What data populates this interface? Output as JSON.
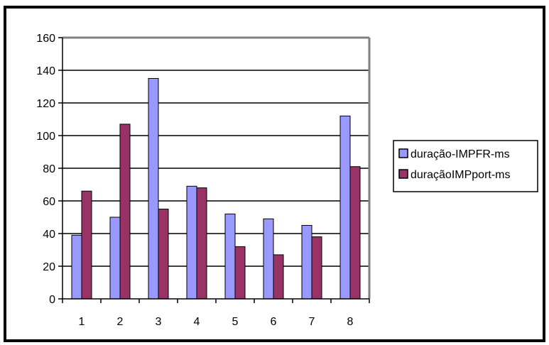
{
  "chart_data": {
    "type": "bar",
    "categories": [
      "1",
      "2",
      "3",
      "4",
      "5",
      "6",
      "7",
      "8"
    ],
    "series": [
      {
        "name": "duração-IMPFR-ms",
        "color": "#9999ff",
        "values": [
          39,
          50,
          135,
          69,
          52,
          49,
          45,
          112
        ]
      },
      {
        "name": "duraçãoIMPport-ms",
        "color": "#993366",
        "values": [
          66,
          107,
          55,
          68,
          32,
          27,
          38,
          81
        ]
      }
    ],
    "ylim": [
      0,
      160
    ],
    "y_ticks": [
      0,
      20,
      40,
      60,
      80,
      100,
      120,
      140,
      160
    ],
    "grid": true,
    "legend_position": "right",
    "plot_background": "#ffffff",
    "wall_color": "#808080",
    "border_color": "#000000"
  }
}
